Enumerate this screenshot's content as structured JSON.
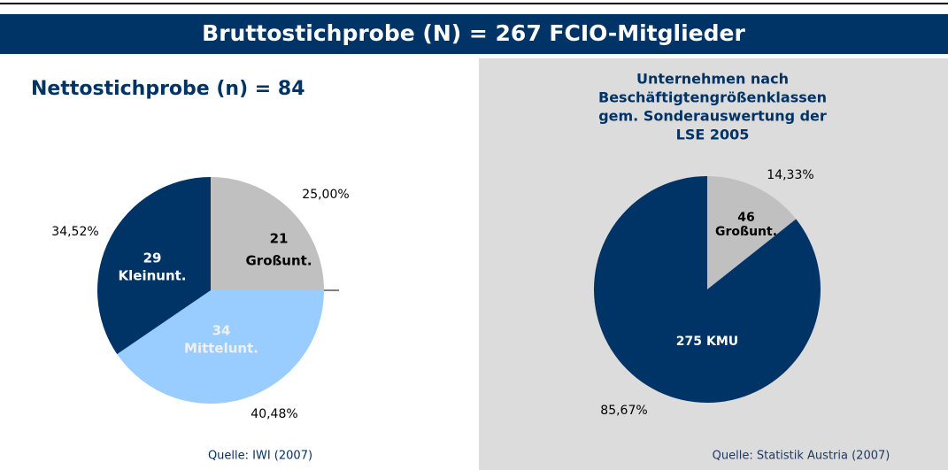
{
  "header": {
    "title": "Bruttostichprobe (N) = 267 FCIO-Mitglieder"
  },
  "chart_data": [
    {
      "type": "pie",
      "title": "Nettostichprobe (n) = 84",
      "categories": [
        "Großunt.",
        "Mittelunt.",
        "Kleinunt."
      ],
      "values": [
        21,
        34,
        29
      ],
      "percent_labels": [
        "25,00%",
        "40,48%",
        "34,52%"
      ],
      "colors": [
        "#c0c0c0",
        "#99ccff",
        "#003366"
      ],
      "source": "Quelle: IWI (2007)"
    },
    {
      "type": "pie",
      "title": [
        "Unternehmen nach",
        "Beschäftigtengrößenklassen",
        "gem. Sonderauswertung der",
        "LSE 2005"
      ],
      "categories": [
        "Großunt.",
        "KMU"
      ],
      "values": [
        46,
        275
      ],
      "percent_labels": [
        "14,33%",
        "85,67%"
      ],
      "colors": [
        "#c0c0c0",
        "#003366"
      ],
      "source": "Quelle: Statistik Austria (2007)"
    }
  ]
}
